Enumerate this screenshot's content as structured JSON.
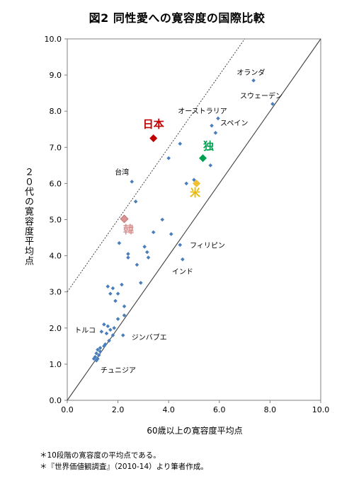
{
  "figure": {
    "title": "図2 同性愛への寛容度の国際比較",
    "notes": [
      "＊10段階の寛容度の平均点である。",
      "＊『世界価値観調査』（2010-14）より筆者作成。"
    ]
  },
  "chart_data": {
    "type": "scatter",
    "title": "図2 同性愛への寛容度の国際比較",
    "xlabel": "60歳以上の寛容度平均点",
    "ylabel": "２０代の寛容度平均点",
    "xlim": [
      0,
      10
    ],
    "ylim": [
      0,
      10
    ],
    "xticks": [
      "0.0",
      "2.0",
      "4.0",
      "6.0",
      "8.0",
      "10.0"
    ],
    "yticks": [
      "0.0",
      "1.0",
      "2.0",
      "3.0",
      "4.0",
      "5.0",
      "6.0",
      "7.0",
      "8.0",
      "9.0",
      "10.0"
    ],
    "reference_lines": [
      {
        "style": "solid",
        "x": [
          0,
          10
        ],
        "y": [
          0,
          10
        ]
      },
      {
        "style": "dotted",
        "x": [
          0,
          7
        ],
        "y": [
          3,
          10
        ]
      }
    ],
    "highlighted": [
      {
        "label": "日本",
        "x": 3.4,
        "y": 7.25,
        "color": "#c00000",
        "label_color": "#c00000"
      },
      {
        "label": "独",
        "x": 5.35,
        "y": 6.7,
        "color": "#00a050",
        "label_color": "#00a050"
      },
      {
        "label": "米",
        "x": 5.1,
        "y": 6.0,
        "color": "#f0c030",
        "label_color": "#e6b800"
      },
      {
        "label": "韓",
        "x": 2.25,
        "y": 5.02,
        "color": "#d99594",
        "label_color": "#d99594"
      }
    ],
    "labels": [
      {
        "text": "オランダ",
        "x": 7.3,
        "y": 8.85
      },
      {
        "text": "スウェーデン",
        "x": 8.1,
        "y": 8.2
      },
      {
        "text": "オーストラリア",
        "x": 5.95,
        "y": 7.8
      },
      {
        "text": "スペイン",
        "x": 5.7,
        "y": 7.6
      },
      {
        "text": "台湾",
        "x": 2.55,
        "y": 6.05
      },
      {
        "text": "フィリピン",
        "x": 4.5,
        "y": 4.3
      },
      {
        "text": "インド",
        "x": 4.55,
        "y": 3.85
      },
      {
        "text": "トルコ",
        "x": 1.4,
        "y": 1.95
      },
      {
        "text": "ジンバブエ",
        "x": 2.2,
        "y": 1.75
      },
      {
        "text": "チュニジア",
        "x": 1.2,
        "y": 1.15
      }
    ],
    "series": [
      {
        "color": "#4a7ebb",
        "points": [
          [
            7.35,
            8.85
          ],
          [
            8.1,
            8.2
          ],
          [
            5.95,
            7.8
          ],
          [
            5.7,
            7.6
          ],
          [
            4.45,
            7.1
          ],
          [
            5.85,
            7.4
          ],
          [
            4.0,
            6.7
          ],
          [
            5.65,
            6.5
          ],
          [
            5.0,
            6.1
          ],
          [
            4.7,
            6.0
          ],
          [
            2.55,
            6.05
          ],
          [
            2.7,
            5.5
          ],
          [
            3.75,
            5.0
          ],
          [
            3.4,
            4.65
          ],
          [
            4.1,
            4.6
          ],
          [
            2.05,
            4.35
          ],
          [
            3.05,
            4.25
          ],
          [
            3.15,
            4.1
          ],
          [
            3.2,
            3.95
          ],
          [
            2.4,
            4.05
          ],
          [
            2.4,
            3.95
          ],
          [
            2.75,
            3.75
          ],
          [
            4.45,
            4.3
          ],
          [
            4.55,
            3.9
          ],
          [
            2.9,
            3.25
          ],
          [
            1.6,
            3.15
          ],
          [
            1.8,
            3.1
          ],
          [
            1.7,
            2.95
          ],
          [
            2.0,
            2.95
          ],
          [
            2.15,
            3.2
          ],
          [
            1.9,
            2.75
          ],
          [
            2.25,
            2.6
          ],
          [
            2.25,
            2.35
          ],
          [
            2.0,
            2.25
          ],
          [
            1.45,
            2.1
          ],
          [
            1.6,
            2.05
          ],
          [
            1.7,
            1.95
          ],
          [
            1.85,
            2.0
          ],
          [
            1.35,
            1.9
          ],
          [
            1.55,
            1.85
          ],
          [
            1.8,
            1.8
          ],
          [
            2.2,
            1.8
          ],
          [
            1.65,
            1.65
          ],
          [
            1.5,
            1.55
          ],
          [
            1.45,
            1.5
          ],
          [
            1.3,
            1.45
          ],
          [
            1.2,
            1.4
          ],
          [
            1.3,
            1.35
          ],
          [
            1.15,
            1.3
          ],
          [
            1.25,
            1.25
          ],
          [
            1.1,
            1.2
          ],
          [
            1.2,
            1.15
          ],
          [
            1.05,
            1.15
          ],
          [
            1.15,
            1.1
          ]
        ]
      }
    ]
  }
}
